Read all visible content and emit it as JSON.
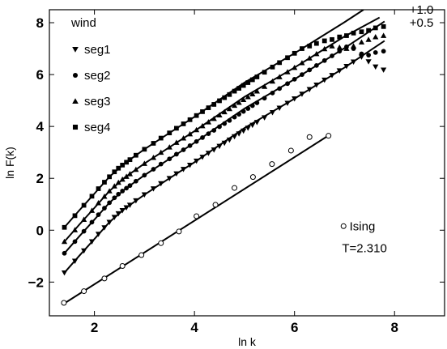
{
  "chart_data": {
    "type": "scatter",
    "xlabel": "ln k",
    "ylabel": "ln F(k)",
    "xlim": [
      1.1,
      9.0
    ],
    "ylim": [
      -3.3,
      8.5
    ],
    "xticks": [
      2,
      4,
      6,
      8
    ],
    "yticks": [
      -2,
      0,
      2,
      4,
      6,
      8
    ],
    "grid": false,
    "legend": {
      "placement": "top-left",
      "title": "wind",
      "entries": [
        {
          "label": "seg1",
          "marker": "triangle-down"
        },
        {
          "label": "seg2",
          "marker": "circle"
        },
        {
          "label": "seg3",
          "marker": "triangle-up"
        },
        {
          "label": "seg4",
          "marker": "square"
        }
      ]
    },
    "series": [
      {
        "name": "seg1",
        "marker": "triangle-down",
        "x": [
          1.4,
          1.61,
          1.79,
          1.95,
          2.08,
          2.2,
          2.3,
          2.4,
          2.48,
          2.56,
          2.64,
          2.71,
          2.83,
          3.0,
          3.18,
          3.33,
          3.5,
          3.64,
          3.78,
          3.91,
          4.04,
          4.16,
          4.28,
          4.39,
          4.5,
          4.6,
          4.7,
          4.8,
          4.89,
          4.98,
          5.07,
          5.16,
          5.25,
          5.4,
          5.56,
          5.7,
          5.86,
          6.0,
          6.15,
          6.3,
          6.44,
          6.6,
          6.75,
          6.9,
          7.04,
          7.18,
          7.34,
          7.48,
          7.62,
          7.78
        ],
        "y": [
          -1.64,
          -1.19,
          -0.79,
          -0.44,
          -0.15,
          0.1,
          0.31,
          0.5,
          0.64,
          0.76,
          0.87,
          0.97,
          1.14,
          1.37,
          1.6,
          1.8,
          2.0,
          2.18,
          2.35,
          2.51,
          2.67,
          2.82,
          2.97,
          3.1,
          3.24,
          3.36,
          3.48,
          3.61,
          3.72,
          3.83,
          3.94,
          4.05,
          4.16,
          4.34,
          4.54,
          4.71,
          4.9,
          5.07,
          5.25,
          5.43,
          5.6,
          5.79,
          5.97,
          6.15,
          6.32,
          6.49,
          6.68,
          6.5,
          6.3,
          6.18
        ]
      },
      {
        "name": "seg2",
        "marker": "circle",
        "x": [
          1.4,
          1.61,
          1.79,
          1.95,
          2.08,
          2.2,
          2.3,
          2.4,
          2.48,
          2.56,
          2.64,
          2.71,
          2.83,
          3.0,
          3.18,
          3.33,
          3.5,
          3.64,
          3.78,
          3.91,
          4.04,
          4.16,
          4.28,
          4.39,
          4.5,
          4.6,
          4.7,
          4.8,
          4.89,
          4.98,
          5.07,
          5.16,
          5.25,
          5.4,
          5.56,
          5.7,
          5.86,
          6.0,
          6.15,
          6.3,
          6.44,
          6.6,
          6.75,
          6.9,
          7.04,
          7.18,
          7.34,
          7.48,
          7.62,
          7.78
        ],
        "y": [
          -0.89,
          -0.44,
          -0.04,
          0.31,
          0.6,
          0.85,
          1.06,
          1.25,
          1.39,
          1.51,
          1.62,
          1.72,
          1.89,
          2.12,
          2.35,
          2.55,
          2.75,
          2.93,
          3.1,
          3.26,
          3.42,
          3.57,
          3.72,
          3.85,
          3.99,
          4.11,
          4.23,
          4.36,
          4.47,
          4.58,
          4.69,
          4.8,
          4.91,
          5.09,
          5.29,
          5.46,
          5.65,
          5.82,
          6.0,
          6.18,
          6.35,
          6.54,
          6.72,
          6.9,
          7.07,
          7.0,
          6.8,
          6.75,
          6.85,
          6.9
        ]
      },
      {
        "name": "seg3",
        "marker": "triangle-up",
        "x": [
          1.4,
          1.61,
          1.79,
          1.95,
          2.08,
          2.2,
          2.3,
          2.4,
          2.48,
          2.56,
          2.64,
          2.71,
          2.83,
          3.0,
          3.18,
          3.33,
          3.5,
          3.64,
          3.78,
          3.91,
          4.04,
          4.16,
          4.28,
          4.39,
          4.5,
          4.6,
          4.7,
          4.8,
          4.89,
          4.98,
          5.07,
          5.16,
          5.25,
          5.4,
          5.56,
          5.7,
          5.86,
          6.0,
          6.15,
          6.3,
          6.44,
          6.6,
          6.75,
          6.9,
          7.04,
          7.18,
          7.34,
          7.48,
          7.62,
          7.78
        ],
        "y": [
          -0.44,
          0.01,
          0.41,
          0.76,
          1.05,
          1.3,
          1.51,
          1.7,
          1.84,
          1.96,
          2.07,
          2.17,
          2.34,
          2.57,
          2.8,
          3.0,
          3.2,
          3.38,
          3.55,
          3.71,
          3.87,
          4.02,
          4.17,
          4.3,
          4.44,
          4.56,
          4.68,
          4.81,
          4.92,
          5.03,
          5.14,
          5.25,
          5.36,
          5.54,
          5.74,
          5.91,
          6.1,
          6.27,
          6.45,
          6.63,
          6.8,
          6.99,
          7.1,
          7.05,
          7.0,
          7.1,
          7.25,
          7.35,
          7.45,
          7.5
        ]
      },
      {
        "name": "seg4",
        "marker": "square",
        "x": [
          1.4,
          1.61,
          1.79,
          1.95,
          2.08,
          2.2,
          2.3,
          2.4,
          2.48,
          2.56,
          2.64,
          2.71,
          2.83,
          3.0,
          3.18,
          3.33,
          3.5,
          3.64,
          3.78,
          3.91,
          4.04,
          4.16,
          4.28,
          4.39,
          4.5,
          4.6,
          4.7,
          4.8,
          4.89,
          4.98,
          5.07,
          5.16,
          5.25,
          5.4,
          5.56,
          5.7,
          5.86,
          6.0,
          6.15,
          6.3,
          6.44,
          6.6,
          6.75,
          6.9,
          7.04,
          7.18,
          7.34,
          7.48,
          7.62,
          7.78
        ],
        "y": [
          0.11,
          0.56,
          0.96,
          1.31,
          1.6,
          1.85,
          2.06,
          2.25,
          2.39,
          2.51,
          2.62,
          2.72,
          2.89,
          3.12,
          3.35,
          3.55,
          3.75,
          3.93,
          4.1,
          4.26,
          4.42,
          4.57,
          4.72,
          4.85,
          4.99,
          5.11,
          5.23,
          5.36,
          5.47,
          5.58,
          5.69,
          5.8,
          5.91,
          6.09,
          6.29,
          6.46,
          6.65,
          6.82,
          7.0,
          7.1,
          7.2,
          7.3,
          7.35,
          7.45,
          7.5,
          7.6,
          7.65,
          7.7,
          7.8,
          7.85
        ]
      },
      {
        "name": "Ising",
        "marker": "open-circle",
        "x": [
          1.39,
          1.79,
          2.2,
          2.56,
          2.94,
          3.33,
          3.69,
          4.04,
          4.42,
          4.8,
          5.17,
          5.55,
          5.93,
          6.3,
          6.68
        ],
        "y": [
          -2.8,
          -2.35,
          -1.86,
          -1.38,
          -0.96,
          -0.5,
          -0.05,
          0.54,
          0.98,
          1.63,
          2.05,
          2.55,
          3.07,
          3.59,
          3.64
        ]
      }
    ],
    "fit_lines": [
      {
        "for": "seg1",
        "x": [
          1.4,
          1.7,
          2.0,
          2.3,
          2.6,
          3.0,
          3.5,
          4.0,
          5.0,
          6.0,
          7.0,
          7.8
        ],
        "y": [
          -1.64,
          -0.98,
          -0.34,
          0.31,
          0.82,
          1.37,
          2.0,
          2.62,
          3.94,
          5.07,
          6.27,
          7.3
        ]
      },
      {
        "for": "seg2",
        "x": [
          1.4,
          1.7,
          2.0,
          2.3,
          2.6,
          3.0,
          3.5,
          4.0,
          5.0,
          6.0,
          7.0,
          7.8
        ],
        "y": [
          -0.89,
          -0.23,
          0.41,
          1.06,
          1.57,
          2.12,
          2.75,
          3.37,
          4.69,
          5.82,
          7.02,
          8.05
        ]
      },
      {
        "for": "seg3",
        "x": [
          1.4,
          1.7,
          2.0,
          2.3,
          2.6,
          3.0,
          3.5,
          4.0,
          5.0,
          6.0,
          7.0,
          7.7
        ],
        "y": [
          -0.44,
          0.22,
          0.86,
          1.51,
          2.02,
          2.57,
          3.2,
          3.82,
          5.14,
          6.27,
          7.47,
          8.2
        ]
      },
      {
        "for": "seg4",
        "x": [
          1.4,
          1.7,
          2.0,
          2.3,
          2.6,
          3.0,
          3.5,
          4.0,
          5.0,
          6.0,
          7.0,
          7.38
        ],
        "y": [
          0.11,
          0.77,
          1.41,
          2.06,
          2.57,
          3.12,
          3.75,
          4.37,
          5.69,
          6.82,
          8.02,
          8.5
        ]
      },
      {
        "for": "Ising",
        "x": [
          1.4,
          6.72
        ],
        "y": [
          -2.82,
          3.7
        ]
      }
    ],
    "annotations": [
      {
        "text": "+1.0",
        "x": 8.3,
        "y": 8.35
      },
      {
        "text": "+0.5",
        "x": 8.3,
        "y": 7.85
      },
      {
        "text": "Ising",
        "x": 7.1,
        "y": 0.0
      },
      {
        "text": "T=2.310",
        "x": 6.95,
        "y": -0.85
      }
    ]
  }
}
